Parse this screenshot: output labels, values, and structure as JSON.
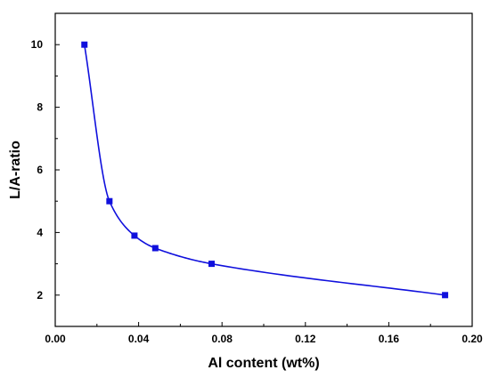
{
  "chart_data": {
    "type": "scatter",
    "title": "",
    "xlabel": "Al content (wt%)",
    "ylabel": "L/A-ratio",
    "xlim": [
      0.0,
      0.2
    ],
    "ylim": [
      1.0,
      11.0
    ],
    "x_ticks": [
      0.0,
      0.04,
      0.08,
      0.12,
      0.16,
      0.2
    ],
    "x_tick_labels": [
      "0.00",
      "0.04",
      "0.08",
      "0.12",
      "0.16",
      "0.20"
    ],
    "y_ticks": [
      2,
      4,
      6,
      8,
      10
    ],
    "y_tick_labels": [
      "2",
      "4",
      "6",
      "8",
      "10"
    ],
    "grid": false,
    "legend": "none",
    "color": "#1010dd",
    "series": [
      {
        "x": [
          0.014,
          0.026,
          0.038,
          0.048,
          0.075,
          0.187
        ],
        "y": [
          10.0,
          5.0,
          3.9,
          3.5,
          3.0,
          2.0
        ],
        "marker": "square",
        "fit_curve": true
      }
    ]
  }
}
